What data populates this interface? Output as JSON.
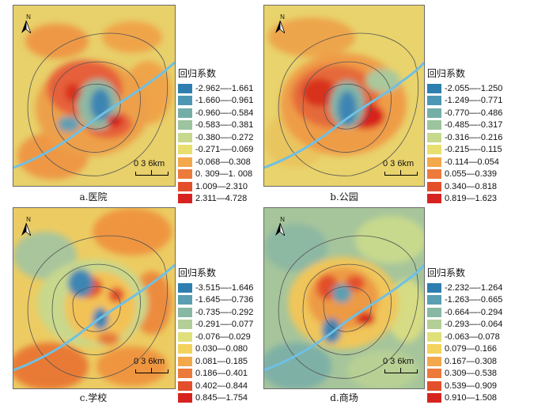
{
  "legend_title": "回归系数",
  "scale_text": "0  3  6km",
  "north_label": "N",
  "panels": [
    {
      "caption": "a.医院",
      "classes": [
        {
          "label": "-2.962—-1.661",
          "color": "#2e7fb0"
        },
        {
          "label": "-1.660—-0.961",
          "color": "#4d97b5"
        },
        {
          "label": "-0.960—-0.584",
          "color": "#74aea7"
        },
        {
          "label": "-0.583—-0.381",
          "color": "#9cc49e"
        },
        {
          "label": "-0.380—-0.272",
          "color": "#c7d98c"
        },
        {
          "label": "-0.271—-0.069",
          "color": "#e8df6e"
        },
        {
          "label": "-0.068—0.308",
          "color": "#f2a84b"
        },
        {
          "label": "0. 309—1. 008",
          "color": "#ec7a3a"
        },
        {
          "label": "1.009—2.310",
          "color": "#e34f2b"
        },
        {
          "label": "2.311—4.728",
          "color": "#d7231f"
        }
      ]
    },
    {
      "caption": "b.公园",
      "classes": [
        {
          "label": "-2.055—-1.250",
          "color": "#2e7fb0"
        },
        {
          "label": "-1.249—-0.771",
          "color": "#4d97b5"
        },
        {
          "label": "-0.770—-0.486",
          "color": "#74aea7"
        },
        {
          "label": "-0.485—-0.317",
          "color": "#9cc49e"
        },
        {
          "label": "-0.316—-0.216",
          "color": "#c7d98c"
        },
        {
          "label": "-0.215—-0.115",
          "color": "#e8df6e"
        },
        {
          "label": "-0.114—0.054",
          "color": "#f2a84b"
        },
        {
          "label": "0.055—0.339",
          "color": "#ec7a3a"
        },
        {
          "label": "0.340—0.818",
          "color": "#e34f2b"
        },
        {
          "label": "0.819—1.623",
          "color": "#d7231f"
        }
      ]
    },
    {
      "caption": "c.学校",
      "classes": [
        {
          "label": "-3.515—-1.646",
          "color": "#2e7fb0"
        },
        {
          "label": "-1.645—-0.736",
          "color": "#5a9fb1"
        },
        {
          "label": "-0.735—-0.292",
          "color": "#86b8a3"
        },
        {
          "label": "-0.291—-0.077",
          "color": "#b3cf97"
        },
        {
          "label": "-0.076—0.029",
          "color": "#dfe07a"
        },
        {
          "label": "0.030—0.080",
          "color": "#f3d35c"
        },
        {
          "label": "0.081—0.185",
          "color": "#f2a84b"
        },
        {
          "label": "0.186—0.401",
          "color": "#ec7a3a"
        },
        {
          "label": "0.402—0.844",
          "color": "#e34f2b"
        },
        {
          "label": "0.845—1.754",
          "color": "#d7231f"
        }
      ]
    },
    {
      "caption": "d.商场",
      "classes": [
        {
          "label": "-2.232—-1.264",
          "color": "#2e7fb0"
        },
        {
          "label": "-1.263—-0.665",
          "color": "#5a9fb1"
        },
        {
          "label": "-0.664—-0.294",
          "color": "#86b8a3"
        },
        {
          "label": "-0.293—-0.064",
          "color": "#b3cf97"
        },
        {
          "label": "-0.063—0.078",
          "color": "#dfe07a"
        },
        {
          "label": "0.079—0.166",
          "color": "#f3d35c"
        },
        {
          "label": "0.167—0.308",
          "color": "#f2a84b"
        },
        {
          "label": "0.309—0.538",
          "color": "#ec7a3a"
        },
        {
          "label": "0.539—0.909",
          "color": "#e34f2b"
        },
        {
          "label": "0.910—1.508",
          "color": "#d7231f"
        }
      ]
    }
  ]
}
